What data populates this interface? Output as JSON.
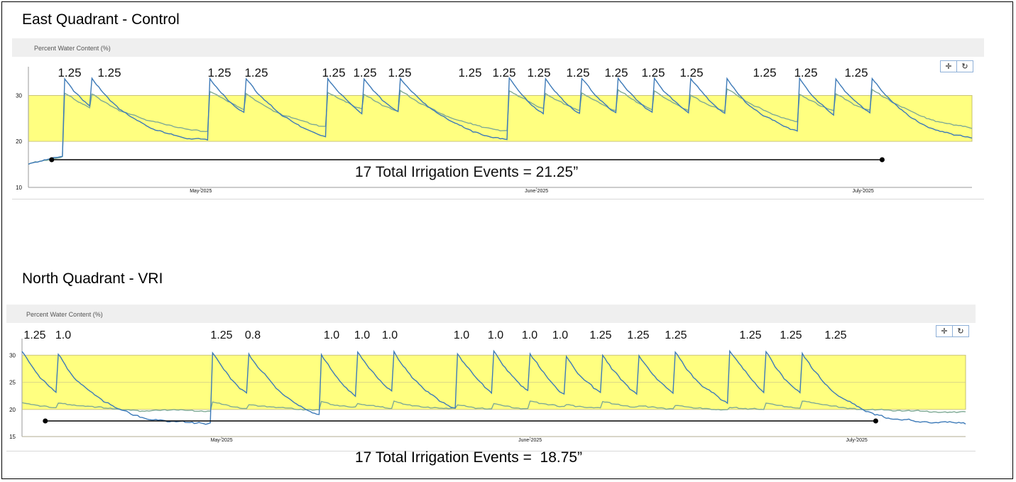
{
  "figure": {
    "east_title": "East Quadrant - Control",
    "north_title": "North Quadrant - VRI"
  },
  "chart_data": [
    {
      "type": "line",
      "title": "East Quadrant - Control",
      "ylabel": "Percent Water Content (%)",
      "ylim": [
        10,
        35
      ],
      "yticks": [
        "10",
        "20",
        "30"
      ],
      "xticks": [
        "May-2025",
        "June-2025",
        "July-2025"
      ],
      "target_band": [
        20,
        30
      ],
      "band_color": "#ffff80",
      "series_colors": [
        "#3d7ab8",
        "#7faa95"
      ],
      "irrigation_amounts": [
        "1.25",
        "1.25",
        "1.25",
        "1.25",
        "1.25",
        "1.25",
        "1.25",
        "1.25",
        "1.25",
        "1.25",
        "1.25",
        "1.25",
        "1.25",
        "1.25",
        "1.25",
        "1.25",
        "1.25"
      ],
      "irrigation_days": [
        4,
        7,
        20,
        24,
        33,
        37,
        41,
        53,
        57,
        61,
        65,
        69,
        73,
        77,
        85,
        89,
        93
      ],
      "x_range_days": [
        0,
        104
      ],
      "month_start_days": [
        19,
        56,
        92
      ],
      "span_days": [
        1,
        93
      ],
      "total_label": "17 Total Irrigation Events = 21.25”",
      "toolbar": {
        "pan_icon": "✛",
        "reset_icon": "↻"
      }
    },
    {
      "type": "line",
      "title": "North Quadrant - VRI",
      "ylabel": "Percent Water Content (%)",
      "ylim": [
        15,
        32
      ],
      "yticks": [
        "15",
        "20",
        "25",
        "30"
      ],
      "xticks": [
        "May-2025",
        "June-2025",
        "July-2025"
      ],
      "target_band": [
        20,
        30
      ],
      "band_color": "#ffff80",
      "series_colors": [
        "#3d7ab8",
        "#7faa95"
      ],
      "irrigation_amounts": [
        "1.25",
        "1.0",
        "1.25",
        "0.8",
        "1.0",
        "1.0",
        "1.0",
        "1.0",
        "1.0",
        "1.0",
        "1.0",
        "1.25",
        "1.25",
        "1.25",
        "1.25",
        "1.25",
        "1.25"
      ],
      "irrigation_days": [
        0,
        4,
        21,
        25,
        33,
        37,
        41,
        48,
        52,
        56,
        60,
        64,
        68,
        72,
        78,
        82,
        86
      ],
      "x_range_days": [
        0,
        104
      ],
      "month_start_days": [
        22,
        56,
        92
      ],
      "span_days": [
        1,
        93
      ],
      "total_label": "17 Total Irrigation Events =  18.75”",
      "toolbar": {
        "pan_icon": "✛",
        "reset_icon": "↻"
      }
    }
  ]
}
